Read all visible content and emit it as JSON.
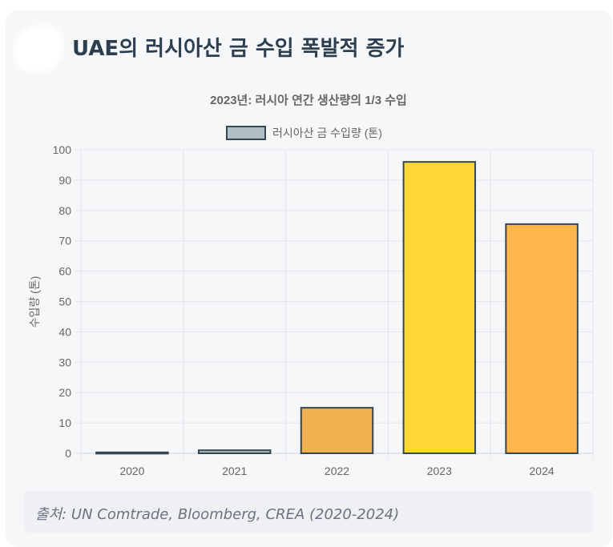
{
  "page": {
    "title": "UAE의 러시아산 금 수입 폭발적 증가",
    "source": "출처: UN Comtrade, Bloomberg, CREA (2020-2024)"
  },
  "colors": {
    "grid": "#e2e5ea",
    "axis_text": "#666666",
    "bar_border": "#37474f"
  },
  "chart_data": {
    "type": "bar",
    "title": "2023년: 러시아 연간 생산량의 1/3 수입",
    "legend_label": "러시아산 금 수입량 (톤)",
    "legend_color": "#b0bec5",
    "legend_placement": "top-center",
    "ylabel": "수입량 (톤)",
    "xlabel": "",
    "ylim": [
      0,
      100
    ],
    "yticks": [
      0,
      10,
      20,
      30,
      40,
      50,
      60,
      70,
      80,
      90,
      100
    ],
    "categories": [
      "2020",
      "2021",
      "2022",
      "2023",
      "2024"
    ],
    "values": [
      0.3,
      1,
      15,
      96,
      75.5
    ],
    "bar_colors": [
      "#b0bec5",
      "#b0bec5",
      "#f0b24f",
      "#fdd835",
      "#ffb74d"
    ],
    "grid": true
  }
}
